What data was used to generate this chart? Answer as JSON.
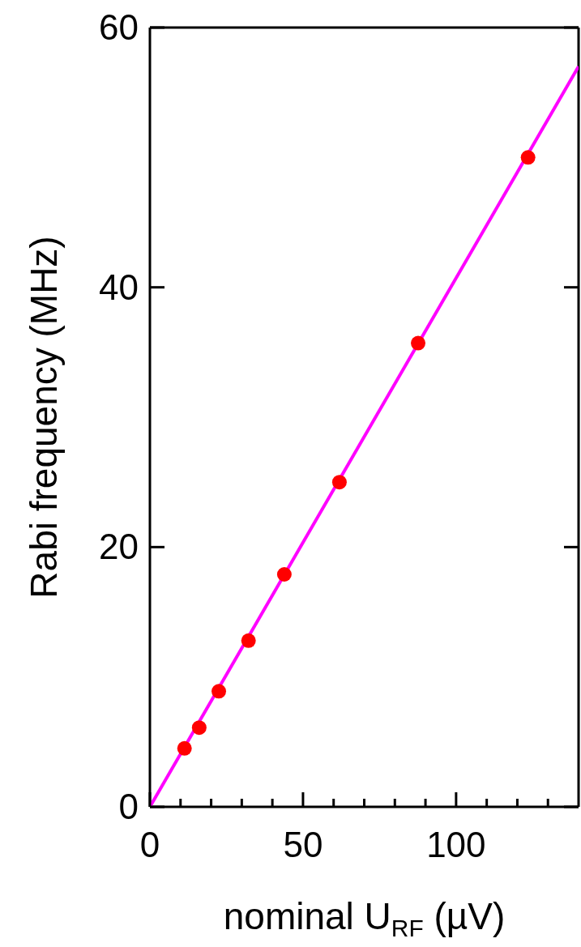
{
  "chart_data": {
    "type": "scatter",
    "xlabel": "nominal U$_{RF}$ (µV)",
    "ylabel": "Rabi frequency (MHz)",
    "xlim": [
      0,
      140
    ],
    "xticks": [
      0,
      {
        "value": 10,
        "label": null
      },
      {
        "value": 20,
        "label": null
      },
      {
        "value": 30,
        "label": null
      },
      {
        "value": 40,
        "label": null
      },
      50,
      {
        "value": 60,
        "label": null
      },
      {
        "value": 70,
        "label": null
      },
      {
        "value": 80,
        "label": null
      },
      {
        "value": 90,
        "label": null
      },
      100,
      {
        "value": 110,
        "label": null
      },
      {
        "value": 120,
        "label": null
      },
      {
        "value": 130,
        "label": null
      }
    ],
    "ylim": [
      0,
      60
    ],
    "yticks": [
      0,
      20,
      40,
      60
    ],
    "grid": false,
    "legend": false,
    "series": [
      {
        "type": "scatter",
        "color": "#ff0000",
        "marker": "circle",
        "x": [
          11.3,
          16.1,
          22.5,
          32.2,
          43.9,
          61.9,
          87.6,
          123.5
        ],
        "values": [
          4.5,
          6.1,
          8.9,
          12.8,
          17.9,
          25.0,
          35.7,
          50.0
        ]
      },
      {
        "type": "line",
        "color": "#ff00ff",
        "marker": "none",
        "line_style": "solid",
        "x": [
          0,
          140
        ],
        "values": [
          0,
          57
        ]
      }
    ]
  }
}
